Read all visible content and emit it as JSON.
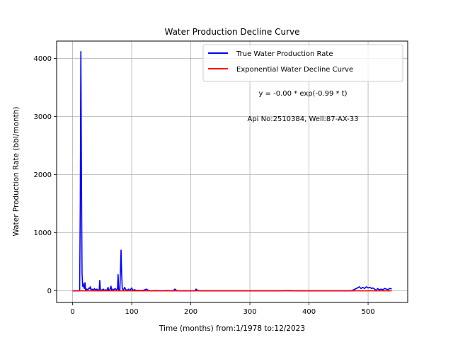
{
  "chart_data": {
    "type": "line",
    "title": "Water Production Decline Curve",
    "xlabel": "Time (months) from:1/1978 to:12/2023",
    "ylabel": "Water Production Rate (bbl/month)",
    "xlim": [
      -27,
      567
    ],
    "ylim": [
      -200,
      4300
    ],
    "grid": true,
    "legend_position": "top-right",
    "x_ticks": [
      0,
      100,
      200,
      300,
      400,
      500
    ],
    "y_ticks": [
      0,
      1000,
      2000,
      3000,
      4000
    ],
    "annotations": [
      "y = -0.00 * exp(-0.99 * t)",
      "Api No:2510384, Well:87-AX-33"
    ],
    "series": [
      {
        "name": "True Water Production Rate",
        "color": "#0000ff",
        "points": [
          [
            0,
            0
          ],
          [
            5,
            0
          ],
          [
            10,
            0
          ],
          [
            12,
            5
          ],
          [
            13,
            1500
          ],
          [
            14,
            4120
          ],
          [
            15,
            2000
          ],
          [
            16,
            300
          ],
          [
            17,
            80
          ],
          [
            18,
            130
          ],
          [
            19,
            60
          ],
          [
            20,
            40
          ],
          [
            21,
            140
          ],
          [
            22,
            20
          ],
          [
            23,
            10
          ],
          [
            24,
            30
          ],
          [
            26,
            20
          ],
          [
            28,
            50
          ],
          [
            29,
            40
          ],
          [
            30,
            70
          ],
          [
            31,
            20
          ],
          [
            33,
            30
          ],
          [
            35,
            10
          ],
          [
            37,
            40
          ],
          [
            39,
            10
          ],
          [
            41,
            30
          ],
          [
            43,
            10
          ],
          [
            45,
            20
          ],
          [
            46,
            180
          ],
          [
            47,
            20
          ],
          [
            49,
            10
          ],
          [
            52,
            30
          ],
          [
            54,
            5
          ],
          [
            56,
            20
          ],
          [
            58,
            5
          ],
          [
            60,
            60
          ],
          [
            61,
            10
          ],
          [
            63,
            20
          ],
          [
            65,
            80
          ],
          [
            66,
            10
          ],
          [
            68,
            30
          ],
          [
            70,
            20
          ],
          [
            72,
            40
          ],
          [
            74,
            20
          ],
          [
            76,
            30
          ],
          [
            77,
            280
          ],
          [
            78,
            20
          ],
          [
            80,
            10
          ],
          [
            82,
            700
          ],
          [
            83,
            300
          ],
          [
            84,
            40
          ],
          [
            86,
            10
          ],
          [
            88,
            60
          ],
          [
            90,
            20
          ],
          [
            92,
            10
          ],
          [
            95,
            30
          ],
          [
            97,
            5
          ],
          [
            100,
            50
          ],
          [
            102,
            10
          ],
          [
            105,
            20
          ],
          [
            108,
            5
          ],
          [
            110,
            10
          ],
          [
            115,
            5
          ],
          [
            120,
            10
          ],
          [
            125,
            30
          ],
          [
            128,
            10
          ],
          [
            132,
            0
          ],
          [
            140,
            5
          ],
          [
            150,
            0
          ],
          [
            160,
            5
          ],
          [
            170,
            0
          ],
          [
            173,
            30
          ],
          [
            176,
            5
          ],
          [
            180,
            0
          ],
          [
            190,
            0
          ],
          [
            200,
            0
          ],
          [
            207,
            0
          ],
          [
            209,
            30
          ],
          [
            212,
            5
          ],
          [
            220,
            0
          ],
          [
            250,
            0
          ],
          [
            300,
            0
          ],
          [
            350,
            0
          ],
          [
            368,
            5
          ],
          [
            370,
            0
          ],
          [
            400,
            0
          ],
          [
            450,
            0
          ],
          [
            470,
            0
          ],
          [
            474,
            10
          ],
          [
            478,
            30
          ],
          [
            482,
            50
          ],
          [
            485,
            70
          ],
          [
            488,
            40
          ],
          [
            491,
            60
          ],
          [
            494,
            40
          ],
          [
            497,
            70
          ],
          [
            500,
            50
          ],
          [
            503,
            60
          ],
          [
            506,
            40
          ],
          [
            508,
            50
          ],
          [
            511,
            30
          ],
          [
            514,
            5
          ],
          [
            516,
            40
          ],
          [
            519,
            20
          ],
          [
            522,
            30
          ],
          [
            525,
            20
          ],
          [
            528,
            40
          ],
          [
            531,
            30
          ],
          [
            534,
            20
          ],
          [
            536,
            40
          ],
          [
            540,
            35
          ]
        ]
      },
      {
        "name": "Exponential Water Decline Curve",
        "color": "#ff0000",
        "points": [
          [
            0,
            0
          ],
          [
            540,
            0
          ]
        ]
      }
    ]
  }
}
